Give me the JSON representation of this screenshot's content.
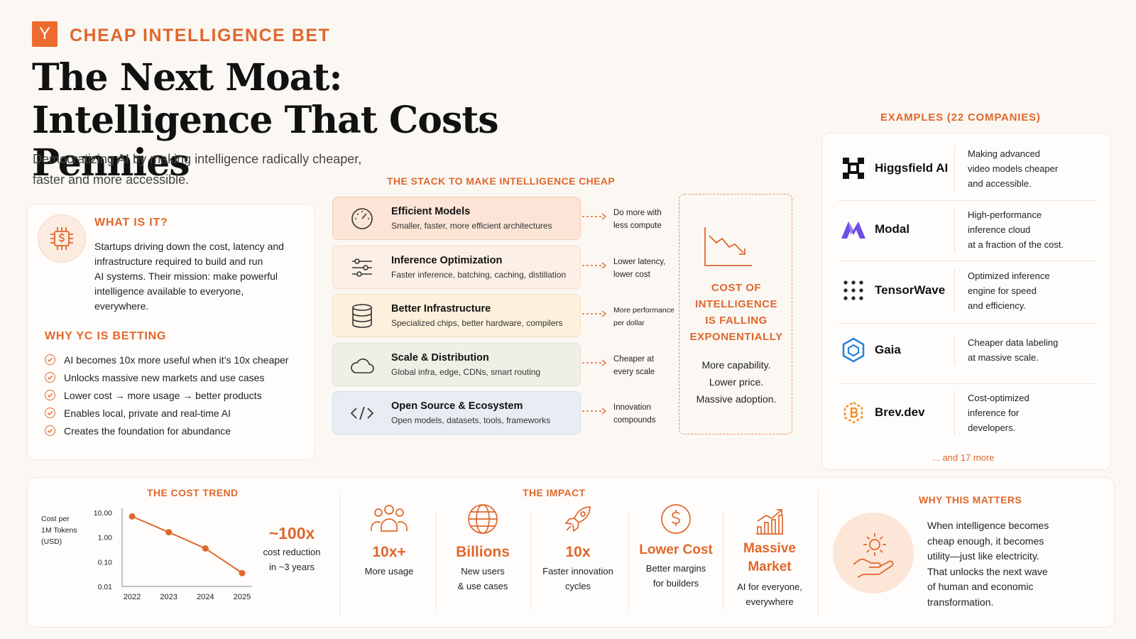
{
  "header": {
    "logo_letter": "Y",
    "brand": "CHEAP INTELLIGENCE BET",
    "title_line1": "The Next Moat:",
    "title_line2": "Intelligence That Costs Pennies",
    "subtitle_line1": "Democratizing AI by making intelligence radically cheaper,",
    "subtitle_line2": "faster and more accessible."
  },
  "what_is_it": {
    "icon": "dollar-chip-icon",
    "heading": "WHAT IS IT?",
    "lines": [
      "Startups driving down the cost, latency and",
      "infrastructure required to build and run",
      "AI systems. Their mission: make powerful",
      "intelligence available to everyone,",
      "everywhere."
    ]
  },
  "why_yc": {
    "heading": "WHY YC IS BETTING",
    "items": [
      "AI becomes 10x more useful when it’s 10x cheaper",
      "Unlocks massive new markets and use cases",
      "Lower cost → more usage → better products",
      "Enables local, private and real-time AI",
      "Creates the foundation for abundance"
    ]
  },
  "stack": {
    "title": "THE STACK TO MAKE INTELLIGENCE CHEAP",
    "layers": [
      {
        "name": "Efficient Models",
        "sub": "Smaller, faster, more efficient architectures",
        "note1": "Do more with",
        "note2": "less compute",
        "icon": "gauge-icon",
        "bg": "#fce5d6",
        "border": "#f4cdb6"
      },
      {
        "name": "Inference Optimization",
        "sub": "Faster inference, batching, caching, distillation",
        "note1": "Lower latency,",
        "note2": "lower cost",
        "icon": "sliders-icon",
        "bg": "#fcefe6",
        "border": "#f2ddd0"
      },
      {
        "name": "Better Infrastructure",
        "sub": "Specialized chips, better hardware, compilers",
        "note1": "More performance",
        "note2": "per dollar",
        "icon": "database-icon",
        "bg": "#fdf0dc",
        "border": "#f4e0c2"
      },
      {
        "name": "Scale & Distribution",
        "sub": "Global infra, edge, CDNs, smart routing",
        "note1": "Cheaper at",
        "note2": "every scale",
        "icon": "cloud-icon",
        "bg": "#eef0e6",
        "border": "#dde1d2"
      },
      {
        "name": "Open Source & Ecosystem",
        "sub": "Open models, datasets, tools, frameworks",
        "note1": "Innovation",
        "note2": "compounds",
        "icon": "code-icon",
        "bg": "#e8edf4",
        "border": "#d4dce8"
      }
    ],
    "falling": {
      "icon": "falling-chart-icon",
      "line1": "COST OF",
      "line2": "INTELLIGENCE",
      "line3": "IS FALLING",
      "line4": "EXPONENTIALLY",
      "sub1": "More capability.",
      "sub2": "Lower price.",
      "sub3": "Massive adoption."
    }
  },
  "examples": {
    "title": "EXAMPLES (22 COMPANIES)",
    "companies": [
      {
        "name": "Higgsfield AI",
        "logo": "higgsfield-logo-icon",
        "d1": "Making advanced",
        "d2": "video models cheaper",
        "d3": "and accessible."
      },
      {
        "name": "Modal",
        "logo": "modal-logo-icon",
        "d1": "High-performance",
        "d2": "inference cloud",
        "d3": "at a fraction of the cost."
      },
      {
        "name": "TensorWave",
        "logo": "tensorwave-logo-icon",
        "d1": "Optimized inference",
        "d2": "engine for speed",
        "d3": "and efficiency."
      },
      {
        "name": "Gaia",
        "logo": "gaia-logo-icon",
        "d1": "Cheaper data labeling",
        "d2": "at massive scale.",
        "d3": ""
      },
      {
        "name": "Brev.dev",
        "logo": "brev-logo-icon",
        "d1": "Cost-optimized",
        "d2": "inference for",
        "d3": "developers."
      }
    ],
    "more": "... and 17 more"
  },
  "chart_data": {
    "type": "line",
    "title": "THE COST TREND",
    "ylabel_1": "Cost per",
    "ylabel_2": "1M Tokens",
    "ylabel_3": "(USD)",
    "ylabel": "Cost per 1M Tokens (USD)",
    "xlabel": "",
    "y_scale": "log",
    "y_ticks": [
      "10.00",
      "1.00",
      "0.10",
      "0.01"
    ],
    "ylim": [
      0.01,
      10
    ],
    "categories": [
      "2022",
      "2023",
      "2024",
      "2025"
    ],
    "values": [
      7,
      1.6,
      0.35,
      0.035
    ],
    "color": "#e0672c",
    "grid": false,
    "callout_value": "~100x",
    "callout_1": "cost reduction",
    "callout_2": "in ~3 years"
  },
  "impact": {
    "title": "THE IMPACT",
    "items": [
      {
        "icon": "users-icon",
        "value": "10x+",
        "l1": "More usage",
        "l2": ""
      },
      {
        "icon": "globe-icon",
        "value": "Billions",
        "l1": "New users",
        "l2": "& use cases"
      },
      {
        "icon": "rocket-icon",
        "value": "10x",
        "l1": "Faster innovation",
        "l2": "cycles"
      },
      {
        "icon": "dollar-coin-icon",
        "value": "Lower Cost",
        "l1": "Better margins",
        "l2": "for builders"
      },
      {
        "icon": "growth-bars-icon",
        "value": "Massive",
        "value2": "Market",
        "l1": "AI for everyone,",
        "l2": "everywhere"
      }
    ]
  },
  "why_matters": {
    "title": "WHY THIS MATTERS",
    "icon": "hand-light-icon",
    "lines": [
      "When intelligence becomes",
      "cheap enough, it becomes",
      "utility—just like electricity.",
      "That unlocks the next wave",
      "of human and economic",
      "transformation."
    ]
  }
}
